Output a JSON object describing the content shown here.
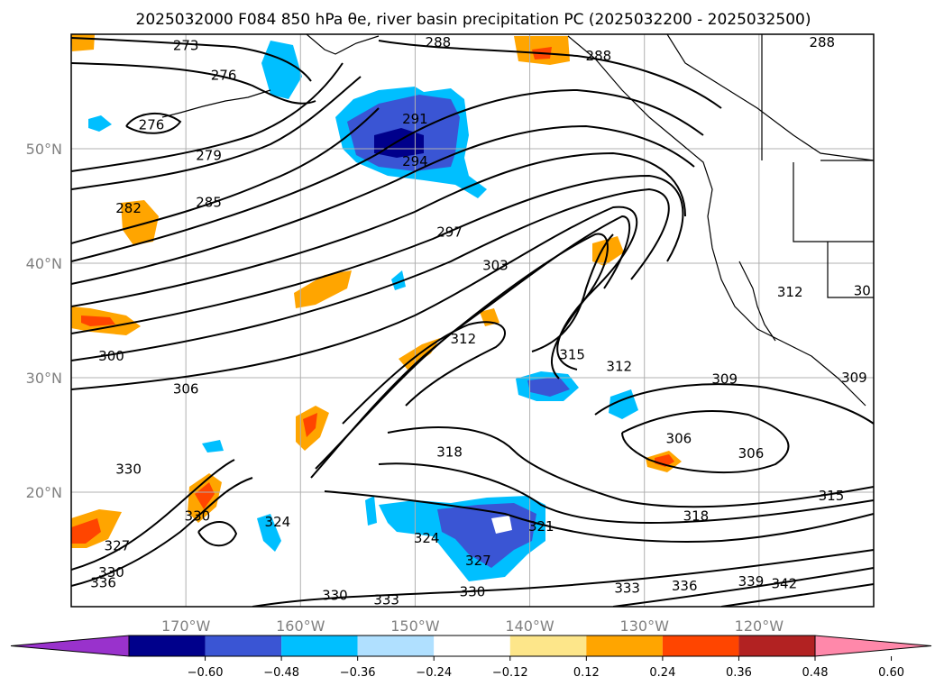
{
  "title": "2025032000 F084 850 hPa θe, river basin precipitation PC (2025032200 - 2025032500)",
  "map": {
    "lat_ticks": [
      "50°N",
      "40°N",
      "30°N",
      "20°N"
    ],
    "lon_ticks": [
      "170°W",
      "160°W",
      "150°W",
      "140°W",
      "130°W",
      "120°W"
    ],
    "lat_range": [
      10,
      60
    ],
    "lon_range": [
      -180,
      -110
    ],
    "projection": "PlateCarree",
    "grid": true,
    "contour_variable": "850 hPa equivalent potential temperature (K)",
    "contour_labels": [
      {
        "text": "273",
        "lon": -170.0,
        "lat": 59.0
      },
      {
        "text": "276",
        "lon": -166.7,
        "lat": 56.4
      },
      {
        "text": "276",
        "lon": -173.0,
        "lat": 52.1
      },
      {
        "text": "279",
        "lon": -168.0,
        "lat": 49.4
      },
      {
        "text": "282",
        "lon": -175.0,
        "lat": 44.8
      },
      {
        "text": "285",
        "lon": -168.0,
        "lat": 45.3
      },
      {
        "text": "288",
        "lon": -148.0,
        "lat": 59.3
      },
      {
        "text": "288",
        "lon": -134.0,
        "lat": 58.1
      },
      {
        "text": "288",
        "lon": -114.5,
        "lat": 59.3
      },
      {
        "text": "291",
        "lon": -150.0,
        "lat": 52.6
      },
      {
        "text": "294",
        "lon": -150.0,
        "lat": 48.9
      },
      {
        "text": "297",
        "lon": -147.0,
        "lat": 42.7
      },
      {
        "text": "303",
        "lon": -143.0,
        "lat": 39.8
      },
      {
        "text": "300",
        "lon": -176.5,
        "lat": 31.9
      },
      {
        "text": "306",
        "lon": -170.0,
        "lat": 29.0
      },
      {
        "text": "312",
        "lon": -145.8,
        "lat": 33.4
      },
      {
        "text": "315",
        "lon": -136.3,
        "lat": 32.0
      },
      {
        "text": "312",
        "lon": -132.2,
        "lat": 31.0
      },
      {
        "text": "312",
        "lon": -117.3,
        "lat": 37.5
      },
      {
        "text": "30",
        "lon": -111.0,
        "lat": 37.6
      },
      {
        "text": "309",
        "lon": -123.0,
        "lat": 29.9
      },
      {
        "text": "309",
        "lon": -111.7,
        "lat": 30.0
      },
      {
        "text": "306",
        "lon": -127.0,
        "lat": 24.7
      },
      {
        "text": "306",
        "lon": -120.7,
        "lat": 23.4
      },
      {
        "text": "318",
        "lon": -147.0,
        "lat": 23.5
      },
      {
        "text": "330",
        "lon": -175.0,
        "lat": 22.0
      },
      {
        "text": "330",
        "lon": -169.0,
        "lat": 17.9
      },
      {
        "text": "324",
        "lon": -162.0,
        "lat": 17.4
      },
      {
        "text": "327",
        "lon": -176.0,
        "lat": 15.3
      },
      {
        "text": "330",
        "lon": -176.5,
        "lat": 13.0
      },
      {
        "text": "336",
        "lon": -177.2,
        "lat": 12.1
      },
      {
        "text": "324",
        "lon": -149.0,
        "lat": 16.0
      },
      {
        "text": "327",
        "lon": -144.5,
        "lat": 14.0
      },
      {
        "text": "321",
        "lon": -139.0,
        "lat": 17.0
      },
      {
        "text": "318",
        "lon": -125.5,
        "lat": 17.9
      },
      {
        "text": "315",
        "lon": -113.7,
        "lat": 19.7
      },
      {
        "text": "330",
        "lon": -157.0,
        "lat": 11.0
      },
      {
        "text": "333",
        "lon": -152.5,
        "lat": 10.6
      },
      {
        "text": "330",
        "lon": -145.0,
        "lat": 11.3
      },
      {
        "text": "333",
        "lon": -131.5,
        "lat": 11.6
      },
      {
        "text": "336",
        "lon": -126.5,
        "lat": 11.8
      },
      {
        "text": "339",
        "lon": -120.7,
        "lat": 12.2
      },
      {
        "text": "342",
        "lon": -117.8,
        "lat": 12.0
      }
    ]
  },
  "colorbar": {
    "ticks": [
      "−0.60",
      "−0.48",
      "−0.36",
      "−0.24",
      "−0.12",
      "0.12",
      "0.24",
      "0.36",
      "0.48",
      "0.60"
    ],
    "levels": [
      -0.6,
      -0.48,
      -0.36,
      -0.24,
      -0.12,
      0.12,
      0.24,
      0.36,
      0.48,
      0.6
    ],
    "colors": [
      "#9932cc",
      "#00008b",
      "#3a55d4",
      "#00bfff",
      "#b0e0ff",
      "#ffffff",
      "#fde68a",
      "#ffa500",
      "#ff4500",
      "#b22222",
      "#ff88aa"
    ],
    "extend": "both"
  },
  "colors": {
    "contour": "#000000",
    "grid": "#b0b0b0",
    "tick_label": "#808080"
  }
}
